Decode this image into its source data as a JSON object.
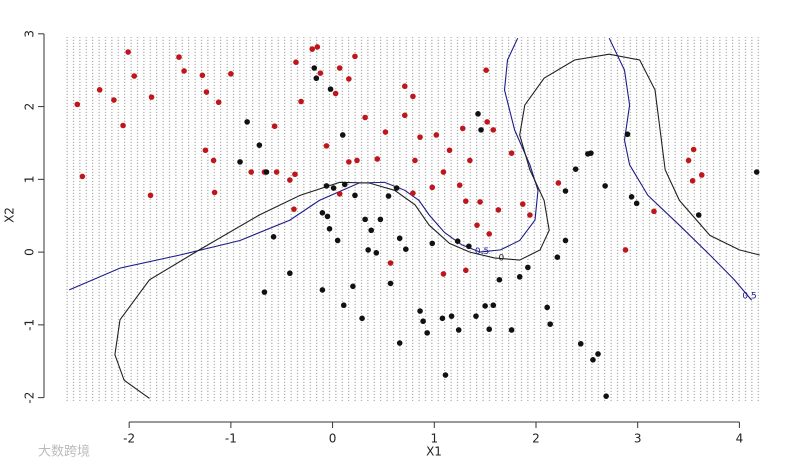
{
  "chart_data": {
    "type": "scatter",
    "x_label": "X1",
    "y_label": "X2",
    "watermark": "大数跨境",
    "xlim": [
      -2.68,
      4.35
    ],
    "ylim": [
      -2.17,
      3.19
    ],
    "xticks": [
      -2,
      -1,
      0,
      1,
      2,
      3,
      4
    ],
    "yticks": [
      -2,
      -1,
      0,
      1,
      2,
      3
    ],
    "series": [
      {
        "color": "#c0161b",
        "x": [
          -2.51,
          -2.46,
          -2.29,
          -2.15,
          -2.06,
          -2.01,
          -1.95,
          -1.78,
          -1.79,
          -1.51,
          -1.46,
          -1.28,
          -1.24,
          -1.25,
          -1.17,
          -1.16,
          -1.12,
          -1.0,
          -0.8,
          -0.67,
          -0.57,
          -0.55,
          -0.42,
          -0.37,
          -0.36,
          -0.31,
          -0.38,
          -0.2,
          -0.15,
          -0.12,
          -0.06,
          0.03,
          0.07,
          0.16,
          0.22,
          0.16,
          0.24,
          0.32,
          0.44,
          0.52,
          0.57,
          0.71,
          0.79,
          0.71,
          0.86,
          0.81,
          1.02,
          0.98,
          1.09,
          1.15,
          1.28,
          1.35,
          1.25,
          1.31,
          1.45,
          1.51,
          1.52,
          1.58,
          1.42,
          1.54,
          1.63,
          1.76,
          1.87,
          1.94,
          2.22,
          2.88,
          3.16,
          3.5,
          3.54,
          3.55,
          3.63,
          1.09,
          1.31,
          0.79,
          0.07
        ],
        "y": [
          2.03,
          1.04,
          2.23,
          2.09,
          1.74,
          2.75,
          2.42,
          2.13,
          0.78,
          2.68,
          2.49,
          2.43,
          2.2,
          1.4,
          1.26,
          0.82,
          2.06,
          2.45,
          1.1,
          1.1,
          1.73,
          1.1,
          0.99,
          1.07,
          2.61,
          2.07,
          0.59,
          2.79,
          2.82,
          2.46,
          1.46,
          2.18,
          2.53,
          2.38,
          2.69,
          1.24,
          1.26,
          1.85,
          1.28,
          1.65,
          -0.15,
          2.28,
          2.14,
          1.88,
          1.58,
          1.26,
          1.61,
          0.89,
          1.1,
          1.4,
          1.7,
          1.26,
          0.92,
          0.7,
          0.69,
          2.5,
          1.79,
          1.68,
          0.37,
          0.25,
          0.58,
          1.36,
          0.66,
          0.51,
          0.95,
          0.03,
          0.56,
          1.26,
          0.98,
          1.41,
          1.06,
          -0.3,
          -0.25,
          0.81,
          0.8
        ]
      },
      {
        "color": "#111111",
        "x": [
          -0.84,
          -0.91,
          -0.72,
          -0.65,
          -0.58,
          -0.67,
          -0.42,
          -0.18,
          -0.16,
          -0.02,
          0.1,
          -0.06,
          0.01,
          0.12,
          -0.1,
          -0.05,
          -0.03,
          -0.1,
          0.05,
          0.11,
          0.22,
          0.32,
          0.35,
          0.38,
          0.43,
          0.47,
          0.55,
          0.63,
          0.66,
          0.72,
          0.2,
          0.29,
          0.57,
          0.66,
          0.86,
          0.89,
          0.93,
          0.98,
          1.08,
          1.11,
          1.17,
          1.24,
          1.23,
          1.34,
          1.41,
          1.5,
          1.54,
          1.58,
          1.64,
          1.76,
          1.84,
          1.92,
          2.11,
          2.14,
          2.21,
          2.29,
          2.29,
          2.39,
          2.44,
          2.51,
          2.54,
          2.56,
          2.61,
          2.68,
          2.69,
          2.9,
          2.94,
          2.99,
          3.6,
          4.17,
          1.43,
          1.46
        ],
        "y": [
          1.79,
          1.24,
          1.47,
          1.1,
          0.21,
          -0.55,
          -0.29,
          2.53,
          2.39,
          2.24,
          1.61,
          0.91,
          0.88,
          0.93,
          0.54,
          0.49,
          0.32,
          -0.52,
          0.16,
          -0.73,
          0.78,
          0.45,
          0.03,
          0.3,
          -0.01,
          0.45,
          0.77,
          0.88,
          0.19,
          0.04,
          -0.47,
          -0.91,
          -0.43,
          -1.25,
          -0.81,
          -0.95,
          -1.11,
          0.12,
          -0.91,
          -1.69,
          -0.88,
          -1.07,
          0.15,
          0.08,
          -0.88,
          -0.74,
          -1.06,
          -0.73,
          -0.38,
          -1.07,
          -0.34,
          -0.21,
          -0.76,
          -0.99,
          -0.07,
          0.16,
          0.84,
          1.14,
          -1.26,
          1.35,
          1.36,
          -1.48,
          -1.4,
          0.91,
          -1.98,
          1.62,
          0.76,
          0.67,
          0.51,
          1.1,
          1.9,
          1.68
        ]
      }
    ],
    "lines": [
      {
        "color": "#1c1c8a",
        "x": [
          -2.59,
          -2.09,
          -1.5,
          -0.91,
          -0.42,
          -0.13,
          0.26,
          0.51,
          0.71,
          0.85,
          0.95,
          1.1,
          1.27,
          1.45,
          1.65,
          1.84,
          1.99,
          2.02,
          1.94,
          1.79,
          1.69,
          1.72,
          1.82,
          null,
          2.72,
          2.87,
          2.92,
          2.87,
          2.92,
          3.1,
          3.41,
          3.71,
          3.95,
          4.12
        ],
        "y": [
          -0.52,
          -0.22,
          -0.04,
          0.16,
          0.44,
          0.71,
          0.95,
          0.96,
          0.85,
          0.71,
          0.51,
          0.27,
          0.1,
          0.0,
          0.03,
          0.16,
          0.44,
          0.85,
          1.2,
          1.68,
          2.23,
          2.64,
          2.94,
          null,
          2.94,
          2.5,
          2.02,
          1.54,
          1.2,
          0.78,
          0.37,
          -0.04,
          -0.38,
          -0.66
        ]
      },
      {
        "color": "#222222",
        "x": [
          -1.8,
          -2.05,
          -2.14,
          -2.09,
          -1.8,
          -1.31,
          -0.72,
          -0.32,
          0.07,
          0.36,
          0.61,
          0.81,
          0.95,
          1.15,
          1.35,
          1.59,
          1.84,
          2.04,
          2.13,
          2.08,
          1.94,
          1.84,
          1.89,
          2.08,
          2.38,
          2.72,
          3.02,
          3.17,
          3.22,
          3.27,
          3.41,
          3.71,
          4.0,
          4.2
        ],
        "y": [
          -2.01,
          -1.76,
          -1.41,
          -0.93,
          -0.38,
          0.03,
          0.51,
          0.78,
          0.96,
          0.95,
          0.85,
          0.65,
          0.37,
          0.12,
          0.0,
          -0.08,
          -0.11,
          0.03,
          0.3,
          0.71,
          1.13,
          1.61,
          2.02,
          2.39,
          2.64,
          2.72,
          2.64,
          2.23,
          1.68,
          1.13,
          0.71,
          0.23,
          0.03,
          -0.04
        ]
      }
    ],
    "annotations": [
      {
        "text": "0.5",
        "x": 4.1,
        "y": -0.6,
        "color": "#1c1c8a"
      },
      {
        "text": "0",
        "x": 1.66,
        "y": -0.08,
        "color": "#222222"
      },
      {
        "text": "0.5",
        "x": 1.47,
        "y": 0.01,
        "color": "#1c1c8a"
      }
    ]
  }
}
